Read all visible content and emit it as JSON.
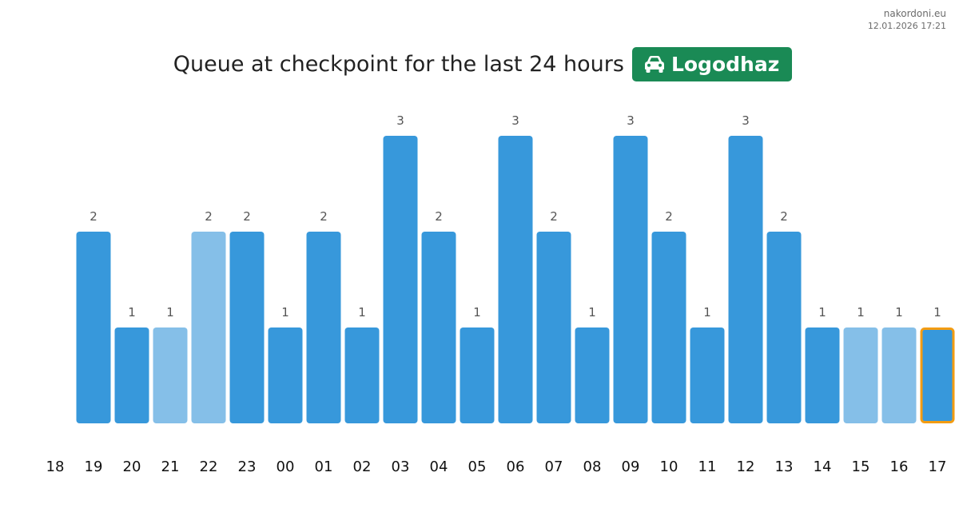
{
  "site": {
    "name": "nakordoni.eu",
    "timestamp": "12.01.2026 17:21"
  },
  "header": {
    "title": "Queue at checkpoint for the last 24 hours",
    "checkpoint_name": "Logodhaz",
    "checkpoint_icon": "car-icon"
  },
  "colors": {
    "bar": "#3798db",
    "bar_light": "#85bfe8",
    "highlight_border": "#f39c12",
    "badge": "#1a8a55",
    "text": "#222222",
    "value_label": "#555555"
  },
  "chart_data": {
    "type": "bar",
    "title": "Queue at checkpoint for the last 24 hours",
    "xlabel": "",
    "ylabel": "",
    "categories": [
      "18",
      "19",
      "20",
      "21",
      "22",
      "23",
      "00",
      "01",
      "02",
      "03",
      "04",
      "05",
      "06",
      "07",
      "08",
      "09",
      "10",
      "11",
      "12",
      "13",
      "14",
      "15",
      "16",
      "17"
    ],
    "values": [
      0,
      2,
      1,
      1,
      2,
      2,
      1,
      2,
      1,
      3,
      2,
      1,
      3,
      2,
      1,
      3,
      2,
      1,
      3,
      2,
      1,
      1,
      1,
      1
    ],
    "value_labels": [
      "",
      "2",
      "1",
      "1",
      "2",
      "2",
      "1",
      "2",
      "1",
      "3",
      "2",
      "1",
      "3",
      "2",
      "1",
      "3",
      "2",
      "1",
      "3",
      "2",
      "1",
      "1",
      "1",
      "1"
    ],
    "light_bars": [
      "21",
      "22",
      "15",
      "16"
    ],
    "highlighted": "17",
    "ylim": [
      0,
      3
    ],
    "grid": false,
    "legend": "none"
  }
}
